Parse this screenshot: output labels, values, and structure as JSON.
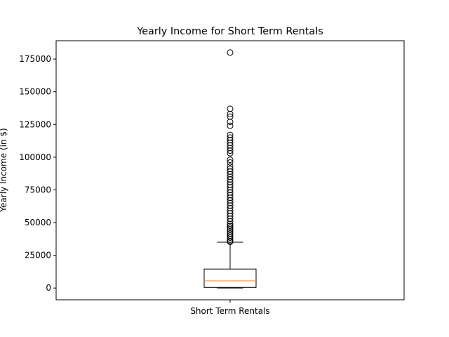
{
  "chart_data": {
    "type": "box",
    "title": "Yearly Income for Short Term Rentals",
    "ylabel": "Yearly Income (in $)",
    "xlabel": "",
    "categories": [
      "Short Term Rentals"
    ],
    "ylim": [
      -9000,
      189000
    ],
    "yticks": [
      0,
      25000,
      50000,
      75000,
      100000,
      125000,
      150000,
      175000
    ],
    "grid": false,
    "box": {
      "whisker_low": 0,
      "q1": 500,
      "median": 5500,
      "q3": 14500,
      "whisker_high": 35000
    },
    "outliers": [
      180000,
      137000,
      133000,
      131000,
      127000,
      124000,
      117000,
      115000,
      113000,
      111000,
      109000,
      107000,
      105000,
      103000,
      98000,
      96000,
      93000,
      91000,
      89000,
      87000,
      85000,
      83000,
      81000,
      79000,
      77000,
      75000,
      73000,
      71000,
      69000,
      67000,
      65000,
      63000,
      61000,
      59000,
      57000,
      55000,
      53000,
      51000,
      49000,
      47500,
      46000,
      44500,
      43000,
      41500,
      40000,
      38500,
      37000,
      35800,
      35300
    ],
    "colors": {
      "box": "#000000",
      "median": "#ff7f0e",
      "outlier": "#000000"
    }
  }
}
